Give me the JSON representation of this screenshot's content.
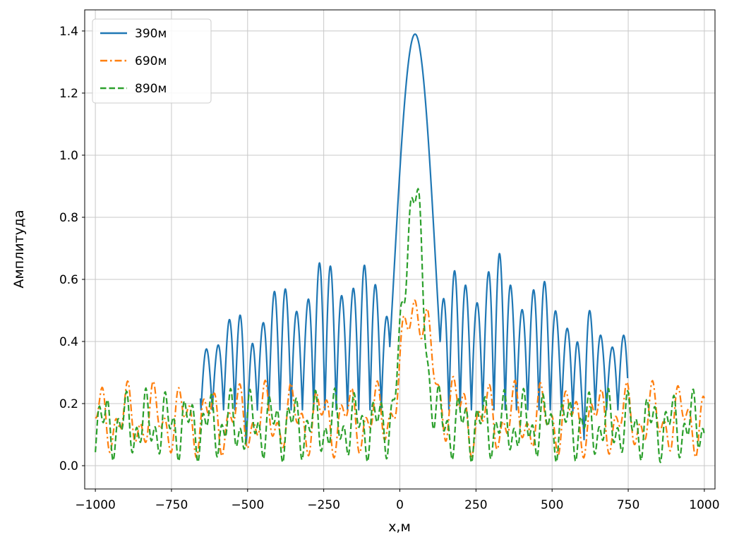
{
  "figure": {
    "background": "#ffffff"
  },
  "chart_data": {
    "type": "line",
    "title": "",
    "xlabel": "x,м",
    "ylabel": "Амплитуда",
    "xlim": [
      -1035,
      1035
    ],
    "ylim": [
      -0.075,
      1.468
    ],
    "x_ticks": [
      -1000,
      -750,
      -500,
      -250,
      0,
      250,
      500,
      750,
      1000
    ],
    "x_tick_labels": [
      "−1000",
      "−750",
      "−500",
      "−250",
      "0",
      "250",
      "500",
      "750",
      "1000"
    ],
    "y_ticks": [
      0.0,
      0.2,
      0.4,
      0.6,
      0.8,
      1.0,
      1.2,
      1.4
    ],
    "y_tick_labels": [
      "0.0",
      "0.2",
      "0.4",
      "0.6",
      "0.8",
      "1.0",
      "1.2",
      "1.4"
    ],
    "grid": true,
    "grid_color": "#c8c8c8",
    "spine_color": "#000000",
    "legend": {
      "position": "upper-left",
      "edge_color": "#cccccc",
      "entries": [
        {
          "label": "390м",
          "color": "#1f77b4",
          "style": "solid"
        },
        {
          "label": "690м",
          "color": "#ff7f0e",
          "style": "dashdot"
        },
        {
          "label": "890м",
          "color": "#2ca02c",
          "style": "dashed"
        }
      ]
    },
    "key_points": {
      "main_peaks": [
        {
          "series": "390м",
          "x": 50,
          "y": 1.39
        },
        {
          "series": "690м",
          "x": 55,
          "y": 0.51
        },
        {
          "series": "890м",
          "x": 45,
          "y": 0.85
        }
      ],
      "sidelobe_peak_level_390": 0.73,
      "sidelobe_trough_level_390": 0.2,
      "baseline_level_690": 0.2,
      "baseline_level_890": 0.15,
      "visible_extent_390": [
        -655,
        748
      ]
    },
    "series": [
      {
        "name": "390м",
        "color": "#1f77b4",
        "linestyle": "solid",
        "linewidth": 2.2,
        "domain": [
          -655,
          748
        ],
        "step": 1,
        "peak": {
          "x": 50,
          "y": 1.39
        },
        "model": {
          "kind": "sidelobe",
          "base": 0.18,
          "main": {
            "x": 50,
            "h": 1.39,
            "halfwidth": 115,
            "pow": 1.5,
            "cosw": 230
          },
          "osc_period": 37,
          "amp": {
            "max": 0.52,
            "slope": 0.0006,
            "ref": 250,
            "min": 0.12
          },
          "mod": {
            "a": 0.85,
            "b": 0.15,
            "period": 23
          },
          "dips": [
            {
              "x": -500,
              "d": 0.13,
              "w": 14
            },
            {
              "x": 595,
              "d": 0.16,
              "w": 14
            }
          ]
        }
      },
      {
        "name": "690м",
        "color": "#ff7f0e",
        "linestyle": "dashdot",
        "linewidth": 2.2,
        "domain": [
          -1000,
          1000
        ],
        "step": 2,
        "peak": {
          "x": 55,
          "y": 0.51
        },
        "model": {
          "kind": "baseline",
          "base": 0.15,
          "main": {
            "x": 55,
            "h": 0.39,
            "sigma": 55
          },
          "waves": [
            {
              "a": 0.07,
              "p": 91,
              "ph": 0.7
            },
            {
              "a": 0.055,
              "p": 41,
              "ph": 0.2
            }
          ],
          "bumps": [
            {
              "x": 170,
              "h": 0.07,
              "w": 22
            }
          ]
        }
      },
      {
        "name": "890м",
        "color": "#2ca02c",
        "linestyle": "dashed",
        "linewidth": 2.2,
        "domain": [
          -1000,
          1000
        ],
        "step": 2,
        "peak": {
          "x": 45,
          "y": 0.85
        },
        "model": {
          "kind": "baseline",
          "base": 0.13,
          "main": {
            "x": 45,
            "h": 0.76,
            "sigma": 42
          },
          "waves": [
            {
              "a": 0.065,
              "p": 69,
              "ph": 2.1
            },
            {
              "a": 0.055,
              "p": 31,
              "ph": 1.0
            }
          ],
          "bumps": []
        }
      }
    ]
  }
}
